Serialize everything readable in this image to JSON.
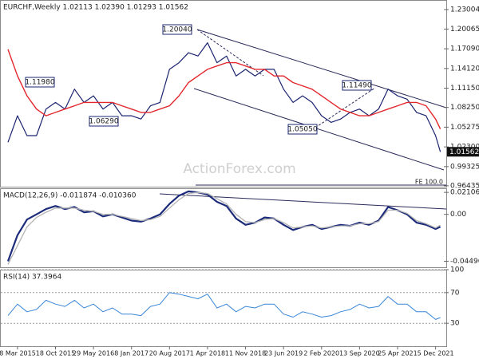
{
  "x_axis": {
    "x": [
      "2015-01-11",
      "2015-03-08",
      "2015-05-03",
      "2015-06-28",
      "2015-08-23",
      "2015-10-18",
      "2015-12-13",
      "2016-02-07",
      "2016-04-03",
      "2016-05-29",
      "2016-07-24",
      "2016-09-18",
      "2016-11-13",
      "2017-01-08",
      "2017-03-05",
      "2017-04-30",
      "2017-06-25",
      "2017-08-20",
      "2017-10-15",
      "2017-12-10",
      "2018-02-04",
      "2018-04-01",
      "2018-05-27",
      "2018-07-22",
      "2018-09-16",
      "2018-11-11",
      "2019-01-06",
      "2019-03-03",
      "2019-04-28",
      "2019-06-23",
      "2019-08-18",
      "2019-10-13",
      "2019-12-08",
      "2020-02-02",
      "2020-03-29",
      "2020-05-24",
      "2020-07-19",
      "2020-09-13",
      "2020-11-08",
      "2021-01-03",
      "2021-02-28",
      "2021-04-25",
      "2021-06-20",
      "2021-08-15",
      "2021-10-10",
      "2021-12-05",
      "2022-01-02"
    ],
    "xlim": [
      "2014-11-25",
      "2022-02-06"
    ],
    "xticks": [
      {
        "value": "2015-03-08",
        "label": "8 Mar 2015"
      },
      {
        "value": "2015-10-18",
        "label": "18 Oct 2015"
      },
      {
        "value": "2016-05-29",
        "label": "29 May 2016"
      },
      {
        "value": "2017-01-08",
        "label": "8 Jan 2017"
      },
      {
        "value": "2017-08-20",
        "label": "20 Aug 2017"
      },
      {
        "value": "2018-04-01",
        "label": "1 Apr 2018"
      },
      {
        "value": "2018-11-11",
        "label": "11 Nov 2018"
      },
      {
        "value": "2019-06-23",
        "label": "23 Jun 2019"
      },
      {
        "value": "2020-02-02",
        "label": "2 Feb 2020"
      },
      {
        "value": "2020-09-13",
        "label": "13 Sep 2020"
      },
      {
        "value": "2021-04-25",
        "label": "25 Apr 2021"
      },
      {
        "value": "2021-12-05",
        "label": "5 Dec 2021"
      }
    ]
  },
  "watermark": "ActionForex.com",
  "chart_data": [
    {
      "type": "line",
      "title": "EURCHF,Weekly  1.02113 1.02390 1.01293 1.01562",
      "ylim": [
        0.963,
        1.2445
      ],
      "yticks": [
        1.23004,
        1.20065,
        {
          "value": 1.1709,
          "label": "1.17090"
        },
        {
          "value": 1.1412,
          "label": "1.14120"
        },
        {
          "value": 1.1115,
          "label": "1.11150"
        },
        {
          "value": 1.0825,
          "label": "1.08250"
        },
        1.05275,
        {
          "value": 1.023,
          "label": "1.02300"
        },
        0.99325,
        0.96435
      ],
      "grid": false,
      "annotations": [
        "1.20040",
        "1.11980",
        "1.06290",
        "1.05050",
        "1.11490",
        "FE 100.0"
      ],
      "series": [
        {
          "color": "#1b2470",
          "values": [
            1.03,
            1.07,
            1.04,
            1.04,
            1.08,
            1.09,
            1.08,
            1.11,
            1.09,
            1.1,
            1.08,
            1.09,
            1.07,
            1.07,
            1.065,
            1.085,
            1.09,
            1.14,
            1.15,
            1.165,
            1.16,
            1.18,
            1.15,
            1.16,
            1.13,
            1.14,
            1.13,
            1.14,
            1.14,
            1.11,
            1.09,
            1.1,
            1.09,
            1.07,
            1.06,
            1.065,
            1.075,
            1.08,
            1.07,
            1.08,
            1.11,
            1.1,
            1.095,
            1.075,
            1.07,
            1.04,
            1.01562
          ]
        },
        {
          "color": "#e3262b",
          "values": [
            1.17,
            1.13,
            1.1,
            1.08,
            1.07,
            1.075,
            1.08,
            1.085,
            1.09,
            1.09,
            1.09,
            1.09,
            1.085,
            1.08,
            1.075,
            1.075,
            1.08,
            1.085,
            1.1,
            1.12,
            1.13,
            1.14,
            1.145,
            1.15,
            1.15,
            1.145,
            1.14,
            1.14,
            1.13,
            1.13,
            1.12,
            1.115,
            1.11,
            1.1,
            1.09,
            1.08,
            1.075,
            1.07,
            1.07,
            1.075,
            1.08,
            1.085,
            1.09,
            1.09,
            1.085,
            1.065,
            1.05
          ]
        }
      ]
    },
    {
      "type": "line",
      "title": "MACD(12,26,9) -0.011874 -0.010360",
      "ylim": [
        -0.0515,
        0.025
      ],
      "yticks": [
        0.021063,
        {
          "value": 0,
          "label": "0.00"
        },
        -0.044965
      ],
      "grid": false,
      "series": [
        {
          "color": "#1c2b7a",
          "values": [
            -0.045,
            -0.02,
            -0.005,
            0.0,
            0.005,
            0.008,
            0.005,
            0.007,
            0.002,
            0.003,
            -0.002,
            0.0,
            -0.003,
            -0.006,
            -0.007,
            -0.004,
            0.0,
            0.01,
            0.018,
            0.022,
            0.021,
            0.019,
            0.012,
            0.008,
            -0.004,
            -0.01,
            -0.008,
            -0.003,
            -0.004,
            -0.01,
            -0.015,
            -0.012,
            -0.01,
            -0.014,
            -0.012,
            -0.01,
            -0.011,
            -0.008,
            -0.01,
            -0.006,
            0.007,
            0.004,
            0.0,
            -0.008,
            -0.01,
            -0.014,
            -0.011874
          ]
        },
        {
          "color": "#b4b4b4",
          "values": [
            -0.048,
            -0.03,
            -0.012,
            -0.003,
            0.002,
            0.006,
            0.006,
            0.006,
            0.004,
            0.003,
            0.0,
            0.0,
            -0.002,
            -0.004,
            -0.006,
            -0.005,
            -0.002,
            0.006,
            0.014,
            0.02,
            0.021,
            0.02,
            0.015,
            0.01,
            0.0,
            -0.007,
            -0.008,
            -0.005,
            -0.004,
            -0.008,
            -0.013,
            -0.012,
            -0.011,
            -0.013,
            -0.012,
            -0.011,
            -0.011,
            -0.009,
            -0.009,
            -0.007,
            0.004,
            0.004,
            0.001,
            -0.006,
            -0.009,
            -0.013,
            -0.01036
          ]
        }
      ]
    },
    {
      "type": "line",
      "title": "RSI(14) 37.3964",
      "ylim": [
        0,
        100
      ],
      "yticks": [
        100,
        70,
        30
      ],
      "grid": true,
      "series": [
        {
          "color": "#3b86d8",
          "values": [
            40,
            55,
            45,
            48,
            60,
            55,
            52,
            60,
            50,
            55,
            45,
            50,
            42,
            42,
            40,
            52,
            55,
            70,
            68,
            65,
            62,
            68,
            50,
            55,
            45,
            52,
            50,
            55,
            55,
            42,
            38,
            45,
            42,
            38,
            40,
            45,
            48,
            55,
            50,
            52,
            65,
            55,
            55,
            45,
            45,
            35,
            37.3964
          ]
        }
      ]
    }
  ]
}
